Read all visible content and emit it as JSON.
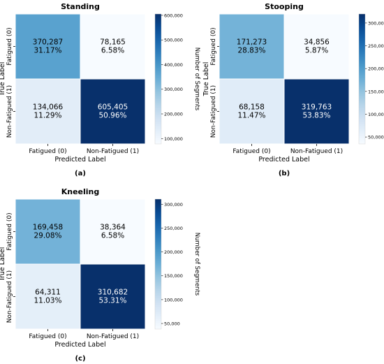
{
  "chart_data": [
    {
      "type": "heatmap",
      "panel_label": "(a)",
      "title": "Standing",
      "xlabel": "Predicted Label",
      "ylabel": "True Label",
      "x_categories": [
        "Fatigued (0)",
        "Non-Fatigued (1)"
      ],
      "y_categories": [
        "Fatigued (0)",
        "Non-Fatigued (1)"
      ],
      "cells": [
        [
          {
            "count": "370,287",
            "percent": "31.17%",
            "value": 370287
          },
          {
            "count": "78,165",
            "percent": "6.58%",
            "value": 78165
          }
        ],
        [
          {
            "count": "134,066",
            "percent": "11.29%",
            "value": 134066
          },
          {
            "count": "605,405",
            "percent": "50.96%",
            "value": 605405
          }
        ]
      ],
      "colorbar": {
        "label": "Number of Segments",
        "range": [
          78165,
          605405
        ],
        "ticks": [
          100000,
          200000,
          300000,
          400000,
          500000,
          600000
        ],
        "tick_labels": [
          "100,000",
          "200,000",
          "300,000",
          "400,000",
          "500,000",
          "600,000"
        ]
      }
    },
    {
      "type": "heatmap",
      "panel_label": "(b)",
      "title": "Stooping",
      "xlabel": "Predicted Label",
      "ylabel": "True Label",
      "x_categories": [
        "Fatigued (0)",
        "Non-Fatigued (1)"
      ],
      "y_categories": [
        "Fatigued (0)",
        "Non-Fatigued (1)"
      ],
      "cells": [
        [
          {
            "count": "171,273",
            "percent": "28.83%",
            "value": 171273
          },
          {
            "count": "34,856",
            "percent": "5.87%",
            "value": 34856
          }
        ],
        [
          {
            "count": "68,158",
            "percent": "11.47%",
            "value": 68158
          },
          {
            "count": "319,763",
            "percent": "53.83%",
            "value": 319763
          }
        ]
      ],
      "colorbar": {
        "label": "Number of Segments",
        "range": [
          34856,
          319763
        ],
        "ticks": [
          50000,
          100000,
          150000,
          200000,
          250000,
          300000
        ],
        "tick_labels": [
          "50,000",
          "100,000",
          "150,000",
          "200,000",
          "250,000",
          "300,000"
        ]
      }
    },
    {
      "type": "heatmap",
      "panel_label": "(c)",
      "title": "Kneeling",
      "xlabel": "Predicted Label",
      "ylabel": "True Label",
      "x_categories": [
        "Fatigued (0)",
        "Non-Fatigued (1)"
      ],
      "y_categories": [
        "Fatigued (0)",
        "Non-Fatigued (1)"
      ],
      "cells": [
        [
          {
            "count": "169,458",
            "percent": "29.08%",
            "value": 169458
          },
          {
            "count": "38,364",
            "percent": "6.58%",
            "value": 38364
          }
        ],
        [
          {
            "count": "64,311",
            "percent": "11.03%",
            "value": 64311
          },
          {
            "count": "310,682",
            "percent": "53.31%",
            "value": 310682
          }
        ]
      ],
      "colorbar": {
        "label": "Number of Segments",
        "range": [
          38364,
          310682
        ],
        "ticks": [
          50000,
          100000,
          150000,
          200000,
          250000,
          300000
        ],
        "tick_labels": [
          "50,000",
          "100,000",
          "150,000",
          "200,000",
          "250,000",
          "300,000"
        ]
      }
    }
  ],
  "colormap": {
    "name": "Blues",
    "stops": [
      "#f7fbff",
      "#deebf7",
      "#c6dbef",
      "#9ecae1",
      "#6baed6",
      "#4292c6",
      "#2171b5",
      "#08519c",
      "#08306b"
    ]
  }
}
